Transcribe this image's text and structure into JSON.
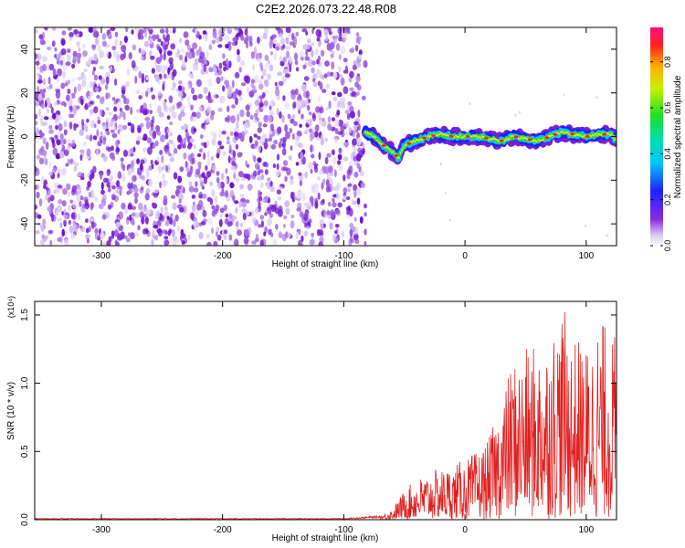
{
  "title": "C2E2.2026.073.22.48.R08",
  "chart_data": [
    {
      "type": "heatmap",
      "title": "C2E2.2026.073.22.48.R08",
      "xlabel": "Height of straight line (km)",
      "ylabel": "Frequency (Hz)",
      "xlim": [
        -355,
        125
      ],
      "ylim": [
        -50,
        50
      ],
      "xticks": [
        -300,
        -200,
        -100,
        0,
        100
      ],
      "yticks": [
        -40,
        -20,
        0,
        20,
        40
      ],
      "xtick_labels": [
        "-300",
        "-200",
        "-100",
        "0",
        "100"
      ],
      "ytick_labels": [
        "-40",
        "-20",
        "0",
        "20",
        "40"
      ],
      "noise_region_x": [
        -355,
        -82
      ],
      "signal_trace": {
        "x": [
          -82,
          -75,
          -70,
          -65,
          -60,
          -55,
          -50,
          -40,
          -30,
          -20,
          -10,
          0,
          10,
          20,
          30,
          40,
          50,
          60,
          70,
          80,
          90,
          100,
          110,
          120,
          125
        ],
        "y": [
          2,
          0,
          -3,
          -5,
          -7,
          -10,
          -4,
          -2,
          0,
          1,
          0,
          0,
          0,
          -1,
          -2,
          0,
          -1,
          -2,
          0,
          2,
          1,
          0,
          1,
          1,
          -2
        ]
      },
      "colorbar": {
        "label": "Normalized spectral amplitude",
        "range": [
          0,
          0.95
        ],
        "ticks": [
          0.0,
          0.2,
          0.4,
          0.6,
          0.8
        ],
        "tick_labels": [
          "0.0",
          "0.2",
          "0.4",
          "0.6",
          "0.8"
        ]
      }
    },
    {
      "type": "line",
      "xlabel": "Height of straight line (km)",
      "ylabel": "SNR (10 * v/v)",
      "multiplier_label": "(x10⁴)",
      "xlim": [
        -355,
        125
      ],
      "ylim": [
        0,
        1.6
      ],
      "xticks": [
        -300,
        -200,
        -100,
        0,
        100
      ],
      "yticks": [
        0.0,
        0.5,
        1.0,
        1.5
      ],
      "xtick_labels": [
        "-300",
        "-200",
        "-100",
        "0",
        "100"
      ],
      "ytick_labels": [
        "0.0",
        "0.5",
        "1.0",
        "1.5"
      ],
      "color": "#e02020",
      "envelope": {
        "x": [
          -355,
          -100,
          -70,
          -60,
          -50,
          -40,
          -30,
          -20,
          -10,
          0,
          10,
          20,
          30,
          40,
          50,
          60,
          70,
          80,
          90,
          100,
          110,
          120,
          125
        ],
        "y": [
          0.01,
          0.01,
          0.03,
          0.08,
          0.22,
          0.3,
          0.35,
          0.38,
          0.4,
          0.45,
          0.5,
          0.6,
          0.9,
          1.2,
          1.25,
          1.3,
          1.4,
          1.58,
          1.35,
          1.3,
          1.5,
          1.4,
          1.35
        ]
      }
    }
  ]
}
